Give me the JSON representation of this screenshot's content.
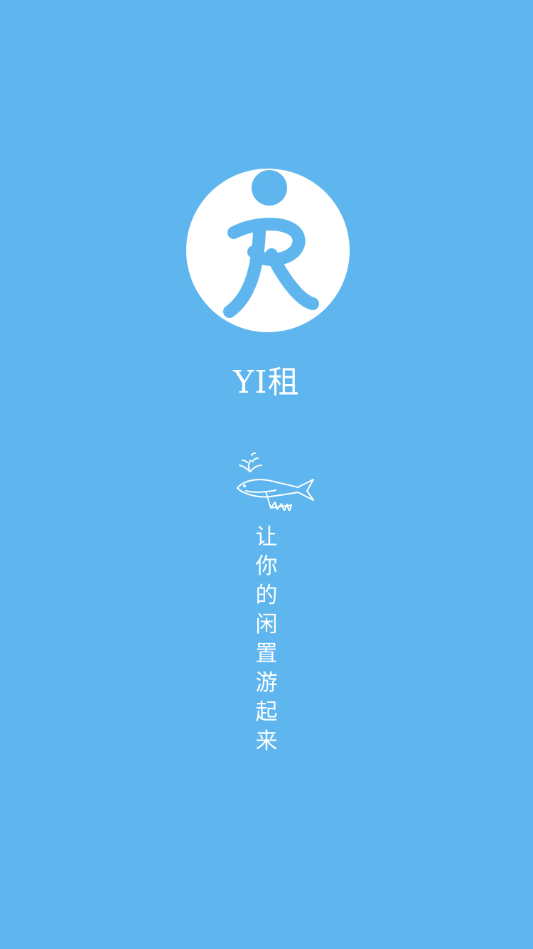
{
  "theme": {
    "background": "#5fb6ee",
    "logo_background": "#ffffff",
    "logo_foreground": "#5fb6ee",
    "text_color": "#ffffff"
  },
  "splash": {
    "app_name": "YI租",
    "logo_icon": "runner-logo-icon",
    "decoration_icon": "whale-icon",
    "slogan_chars": [
      "让",
      "你",
      "的",
      "闲",
      "置",
      "游",
      "起",
      "来"
    ]
  }
}
